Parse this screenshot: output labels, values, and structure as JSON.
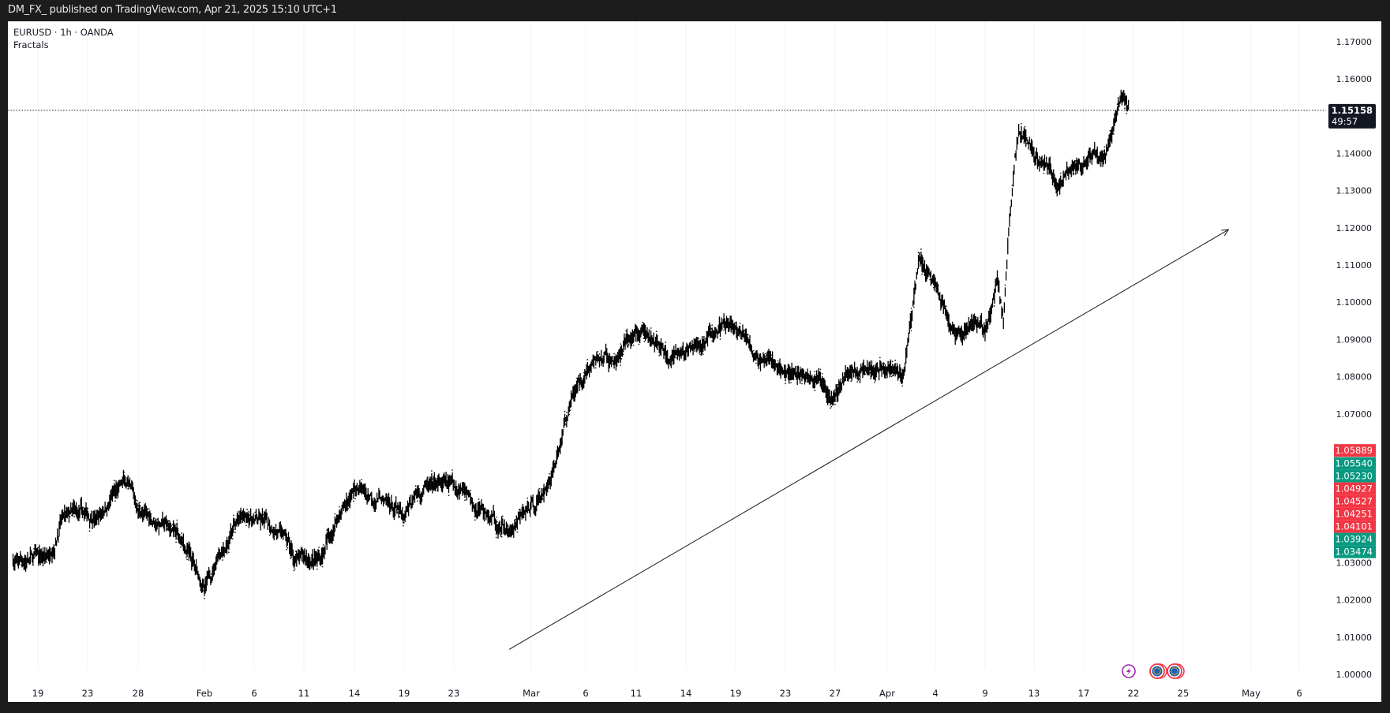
{
  "header": {
    "title": "DM_FX_ published on TradingView.com, Apr 21, 2025 15:10 UTC+1"
  },
  "legend": {
    "symbol": "EURUSD · 1h · OANDA",
    "indicator": "Fractals"
  },
  "chart_data": {
    "type": "line",
    "style": "candlestick-ohlc (hourly, black)",
    "symbol": "EURUSD",
    "interval": "1h",
    "source": "OANDA",
    "ylim": [
      1.0,
      1.17
    ],
    "y_ticks": [
      "1.00000",
      "1.01000",
      "1.02000",
      "1.03000",
      "1.04000",
      "1.05000",
      "1.06000",
      "1.07000",
      "1.08000",
      "1.09000",
      "1.10000",
      "1.11000",
      "1.12000",
      "1.13000",
      "1.14000",
      "1.15000",
      "1.16000",
      "1.17000"
    ],
    "x_ticks": [
      {
        "label": "19",
        "date": "2025-01-19"
      },
      {
        "label": "23",
        "date": "2025-01-23"
      },
      {
        "label": "28",
        "date": "2025-01-28"
      },
      {
        "label": "Feb",
        "date": "2025-02-02"
      },
      {
        "label": "6",
        "date": "2025-02-06"
      },
      {
        "label": "11",
        "date": "2025-02-11"
      },
      {
        "label": "14",
        "date": "2025-02-14"
      },
      {
        "label": "19",
        "date": "2025-02-19"
      },
      {
        "label": "23",
        "date": "2025-02-23"
      },
      {
        "label": "Mar",
        "date": "2025-03-02"
      },
      {
        "label": "6",
        "date": "2025-03-06"
      },
      {
        "label": "11",
        "date": "2025-03-11"
      },
      {
        "label": "14",
        "date": "2025-03-14"
      },
      {
        "label": "19",
        "date": "2025-03-19"
      },
      {
        "label": "23",
        "date": "2025-03-23"
      },
      {
        "label": "27",
        "date": "2025-03-27"
      },
      {
        "label": "Apr",
        "date": "2025-04-01"
      },
      {
        "label": "4",
        "date": "2025-04-04"
      },
      {
        "label": "9",
        "date": "2025-04-09"
      },
      {
        "label": "13",
        "date": "2025-04-13"
      },
      {
        "label": "17",
        "date": "2025-04-17"
      },
      {
        "label": "22",
        "date": "2025-04-22"
      },
      {
        "label": "25",
        "date": "2025-04-25"
      },
      {
        "label": "May",
        "date": "2025-05-01"
      },
      {
        "label": "6",
        "date": "2025-05-06"
      }
    ],
    "grid": "vertical",
    "series": [
      {
        "points": [
          [
            "2025-01-17",
            1.03
          ],
          [
            "2025-01-20",
            1.032
          ],
          [
            "2025-01-21",
            1.043
          ],
          [
            "2025-01-24",
            1.042
          ],
          [
            "2025-01-26",
            1.05
          ],
          [
            "2025-01-27",
            1.051
          ],
          [
            "2025-01-28",
            1.044
          ],
          [
            "2025-01-31",
            1.038
          ],
          [
            "2025-02-02",
            1.023
          ],
          [
            "2025-02-03",
            1.031
          ],
          [
            "2025-02-05",
            1.043
          ],
          [
            "2025-02-09",
            1.038
          ],
          [
            "2025-02-10",
            1.031
          ],
          [
            "2025-02-12",
            1.031
          ],
          [
            "2025-02-13",
            1.042
          ],
          [
            "2025-02-14",
            1.05
          ],
          [
            "2025-02-17",
            1.047
          ],
          [
            "2025-02-19",
            1.042
          ],
          [
            "2025-02-20",
            1.049
          ],
          [
            "2025-02-21",
            1.051
          ],
          [
            "2025-02-24",
            1.05
          ],
          [
            "2025-02-26",
            1.043
          ],
          [
            "2025-02-28",
            1.038
          ],
          [
            "2025-03-03",
            1.049
          ],
          [
            "2025-03-04",
            1.06
          ],
          [
            "2025-03-05",
            1.075
          ],
          [
            "2025-03-06",
            1.081
          ],
          [
            "2025-03-07",
            1.085
          ],
          [
            "2025-03-09",
            1.084
          ],
          [
            "2025-03-11",
            1.092
          ],
          [
            "2025-03-12",
            1.09
          ],
          [
            "2025-03-13",
            1.084
          ],
          [
            "2025-03-15",
            1.088
          ],
          [
            "2025-03-17",
            1.092
          ],
          [
            "2025-03-18",
            1.094
          ],
          [
            "2025-03-20",
            1.09
          ],
          [
            "2025-03-21",
            1.084
          ],
          [
            "2025-03-23",
            1.081
          ],
          [
            "2025-03-25",
            1.08
          ],
          [
            "2025-03-27",
            1.075
          ],
          [
            "2025-03-28",
            1.081
          ],
          [
            "2025-03-30",
            1.082
          ],
          [
            "2025-04-01",
            1.082
          ],
          [
            "2025-04-02",
            1.08
          ],
          [
            "2025-04-03",
            1.112
          ],
          [
            "2025-04-04",
            1.105
          ],
          [
            "2025-04-06",
            1.091
          ],
          [
            "2025-04-08",
            1.095
          ],
          [
            "2025-04-09",
            1.092
          ],
          [
            "2025-04-10",
            1.107
          ],
          [
            "2025-04-10T12",
            1.095
          ],
          [
            "2025-04-11",
            1.122
          ],
          [
            "2025-04-11T18",
            1.146
          ],
          [
            "2025-04-14",
            1.137
          ],
          [
            "2025-04-15",
            1.131
          ],
          [
            "2025-04-16",
            1.136
          ],
          [
            "2025-04-17",
            1.137
          ],
          [
            "2025-04-19",
            1.138
          ],
          [
            "2025-04-20T18",
            1.155
          ],
          [
            "2025-04-21T14",
            1.15158
          ]
        ]
      }
    ],
    "trendline": {
      "from": [
        "2025-02-28",
        1.0067
      ],
      "to": [
        "2025-04-29",
        1.1195
      ],
      "arrow": true
    },
    "current_price": {
      "value": "1.15158",
      "countdown": "49:57",
      "color": "#131722"
    },
    "price_labels": [
      {
        "value": "1.05889",
        "color": "#f23645"
      },
      {
        "value": "1.05540",
        "color": "#089981"
      },
      {
        "value": "1.05230",
        "color": "#089981"
      },
      {
        "value": "1.04927",
        "color": "#f23645"
      },
      {
        "value": "1.04527",
        "color": "#f23645"
      },
      {
        "value": "1.04251",
        "color": "#f23645"
      },
      {
        "value": "1.04101",
        "color": "#f23645"
      },
      {
        "value": "1.03924",
        "color": "#089981"
      },
      {
        "value": "1.03474",
        "color": "#089981"
      }
    ],
    "events": [
      {
        "icon": "lightning-icon",
        "color": "#9c27b0"
      },
      {
        "icon": "eu-flag-icon",
        "color": "#f23645"
      },
      {
        "icon": "eu-flag-icon",
        "color": "#f23645"
      }
    ]
  }
}
